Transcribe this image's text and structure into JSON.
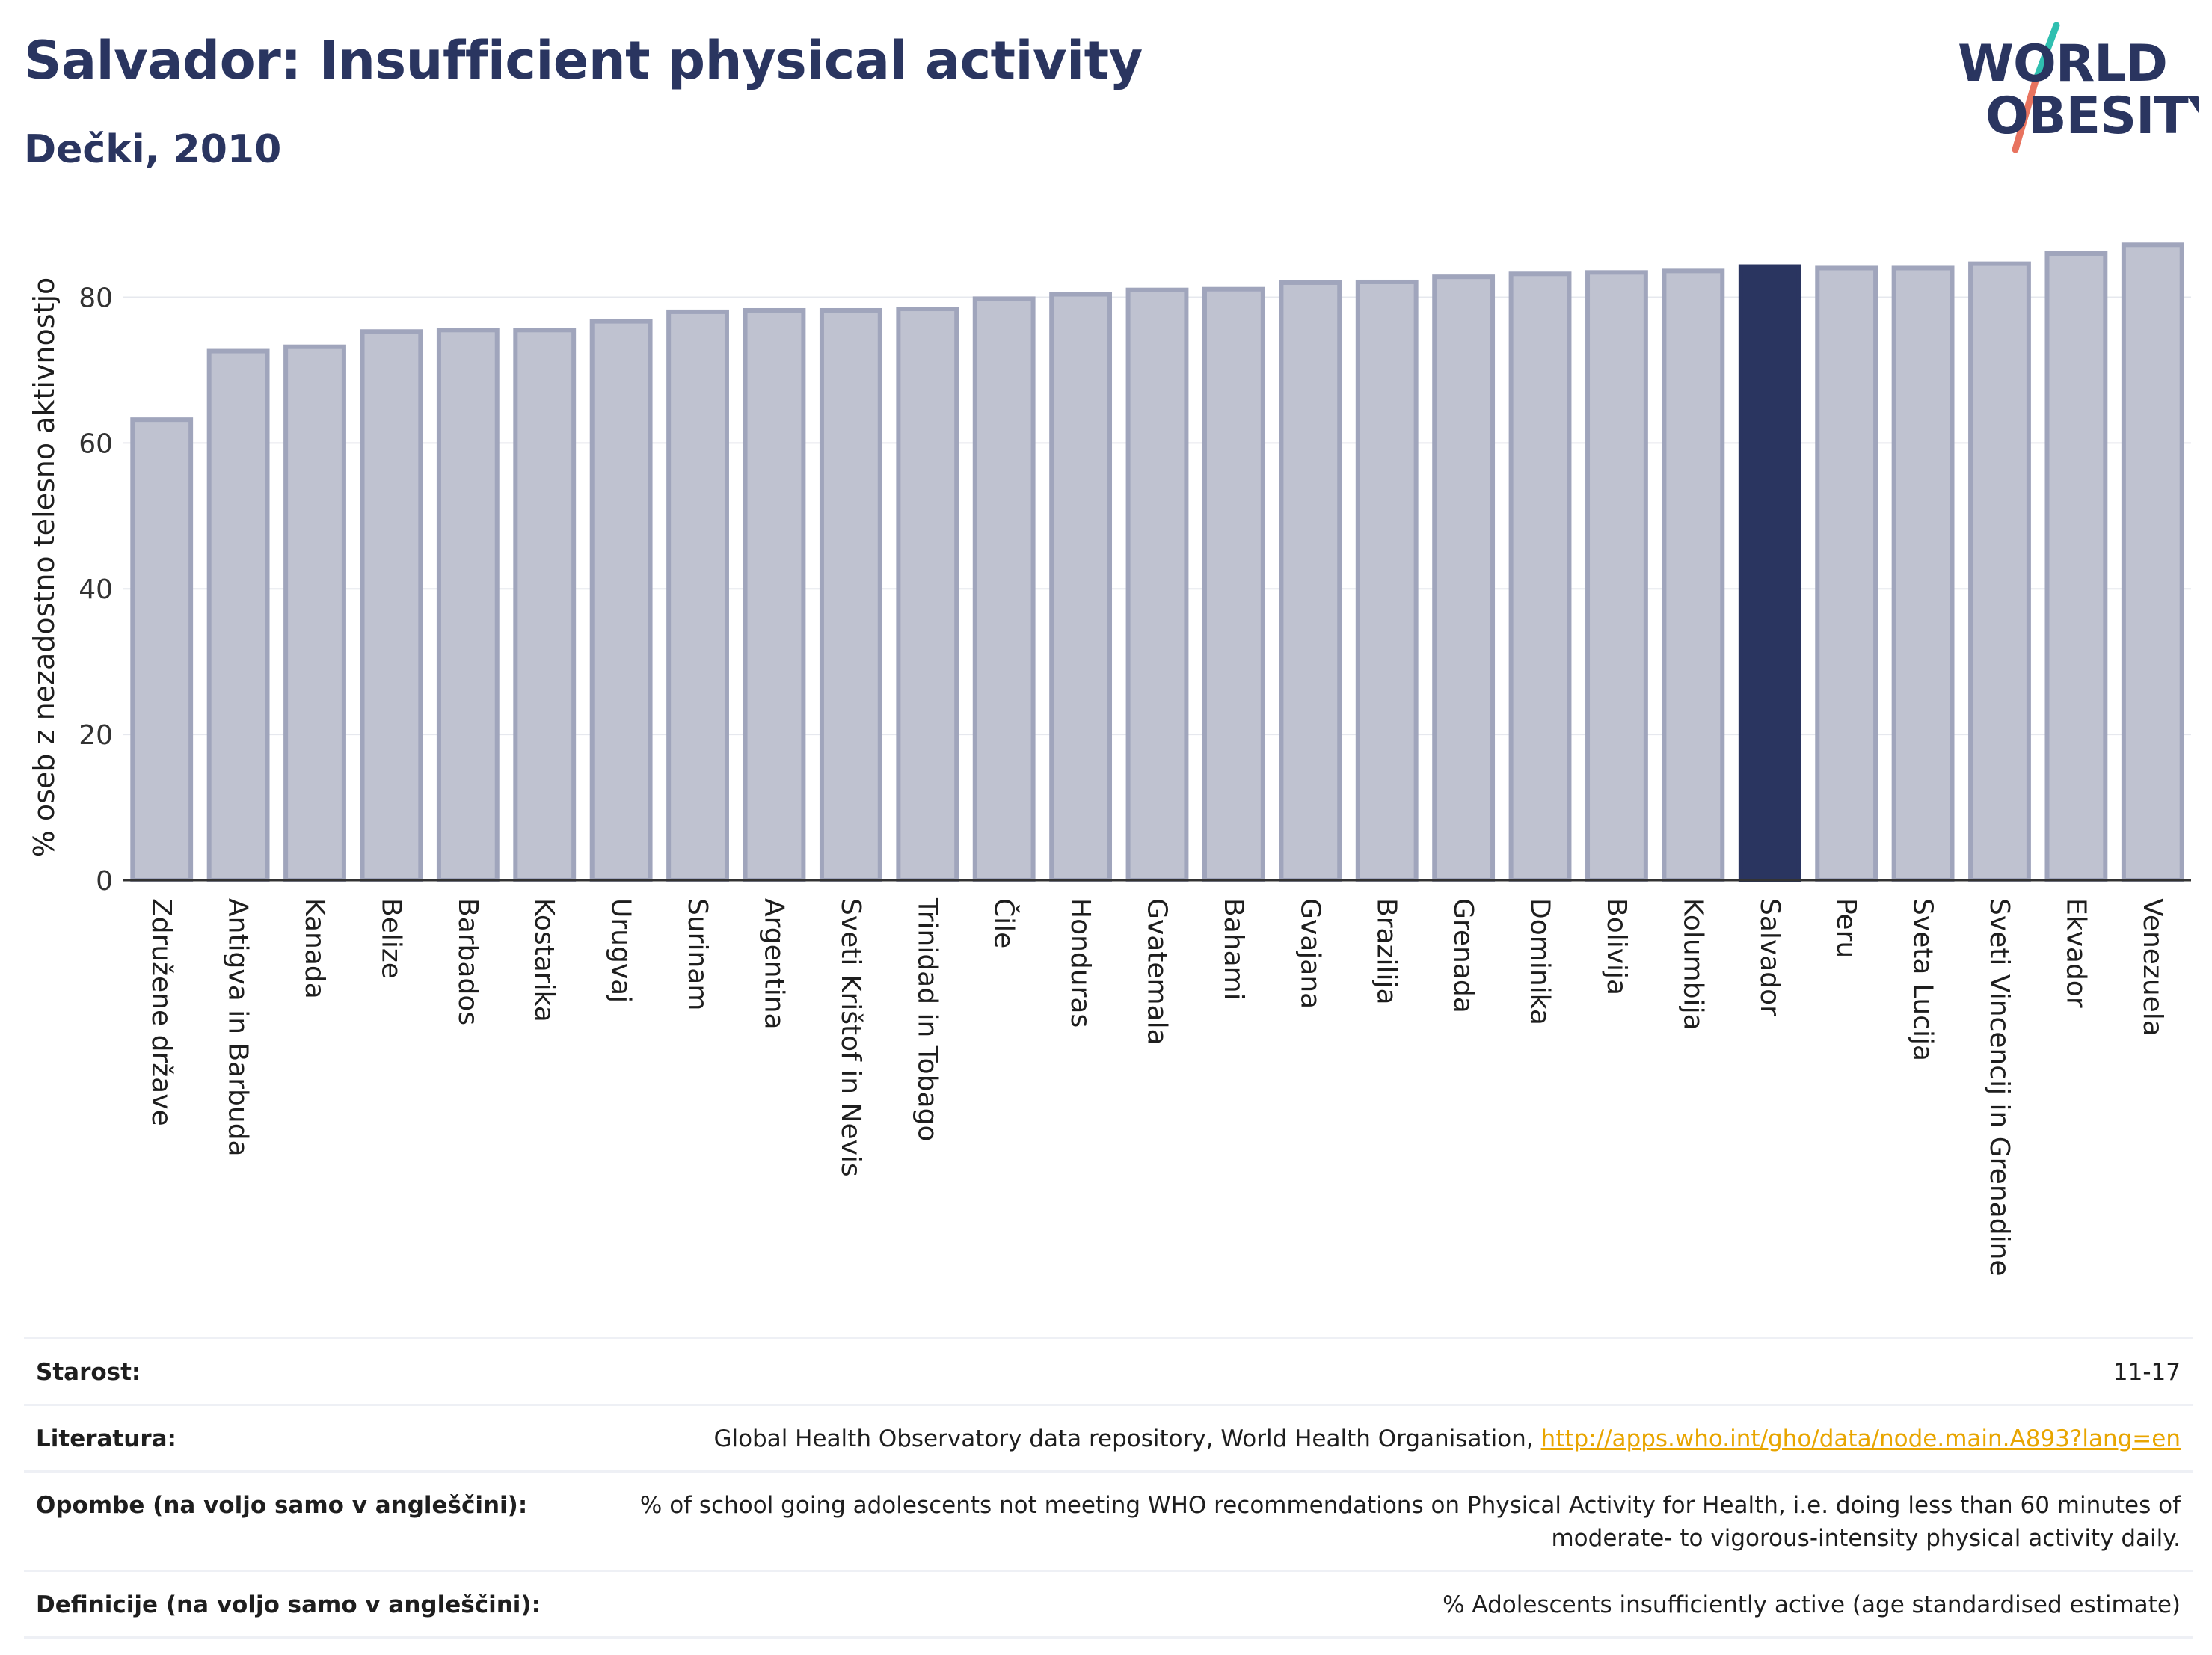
{
  "header": {
    "title": "Salvador: Insufficient physical activity",
    "subtitle": "Dečki, 2010"
  },
  "logo": {
    "line1": "WORLD",
    "line2": "OBESITY",
    "colors": {
      "text": "#2a3560",
      "slash_teal": "#2fbfb0",
      "slash_coral": "#e8735f"
    }
  },
  "colors": {
    "bar_fill": "#bfc2d0",
    "bar_stroke": "#a0a5bc",
    "highlight": "#2a3560",
    "grid": "#e6e8ee",
    "axis": "#333333",
    "text": "#2a3560"
  },
  "chart_data": {
    "type": "bar",
    "title": "Salvador: Insufficient physical activity",
    "subtitle": "Dečki, 2010",
    "xlabel": "",
    "ylabel": "% oseb z nezadostno telesno aktivnostjo",
    "ylim": [
      0,
      90
    ],
    "yticks": [
      0,
      20,
      40,
      60,
      80
    ],
    "grid": true,
    "highlight": "Salvador",
    "categories": [
      "Združene države",
      "Antigva in Barbuda",
      "Kanada",
      "Belize",
      "Barbados",
      "Kostarika",
      "Urugvaj",
      "Surinam",
      "Argentina",
      "Sveti Krištof in Nevis",
      "Trinidad in Tobago",
      "Čile",
      "Honduras",
      "Gvatemala",
      "Bahami",
      "Gvajana",
      "Brazilija",
      "Grenada",
      "Dominika",
      "Bolivija",
      "Kolumbija",
      "Salvador",
      "Peru",
      "Sveta Lucija",
      "Sveti Vincencij in Grenadine",
      "Ekvador",
      "Venezuela"
    ],
    "values": [
      63.2,
      72.6,
      73.2,
      75.3,
      75.5,
      75.5,
      76.7,
      78.0,
      78.2,
      78.2,
      78.4,
      79.8,
      80.4,
      81.0,
      81.1,
      82.0,
      82.1,
      82.8,
      83.2,
      83.4,
      83.6,
      84.2,
      84.0,
      84.0,
      84.6,
      86.0,
      87.2
    ]
  },
  "info": {
    "rows": [
      {
        "label": "Starost:",
        "value": "11-17"
      },
      {
        "label": "Literatura:",
        "value": "Global Health Observatory data repository, World Health Organisation,",
        "link": "http://apps.who.int/gho/data/node.main.A893?lang=en"
      },
      {
        "label": "Opombe (na voljo samo v angleščini):",
        "value_line1": "% of school going adolescents not meeting WHO recommendations on Physical Activity for Health, i.e. doing less than 60 minutes of",
        "value_line2": "moderate- to vigorous-intensity physical activity daily."
      },
      {
        "label": "Definicije (na voljo samo v angleščini):",
        "value": "% Adolescents insufficiently active (age standardised estimate)"
      }
    ]
  }
}
